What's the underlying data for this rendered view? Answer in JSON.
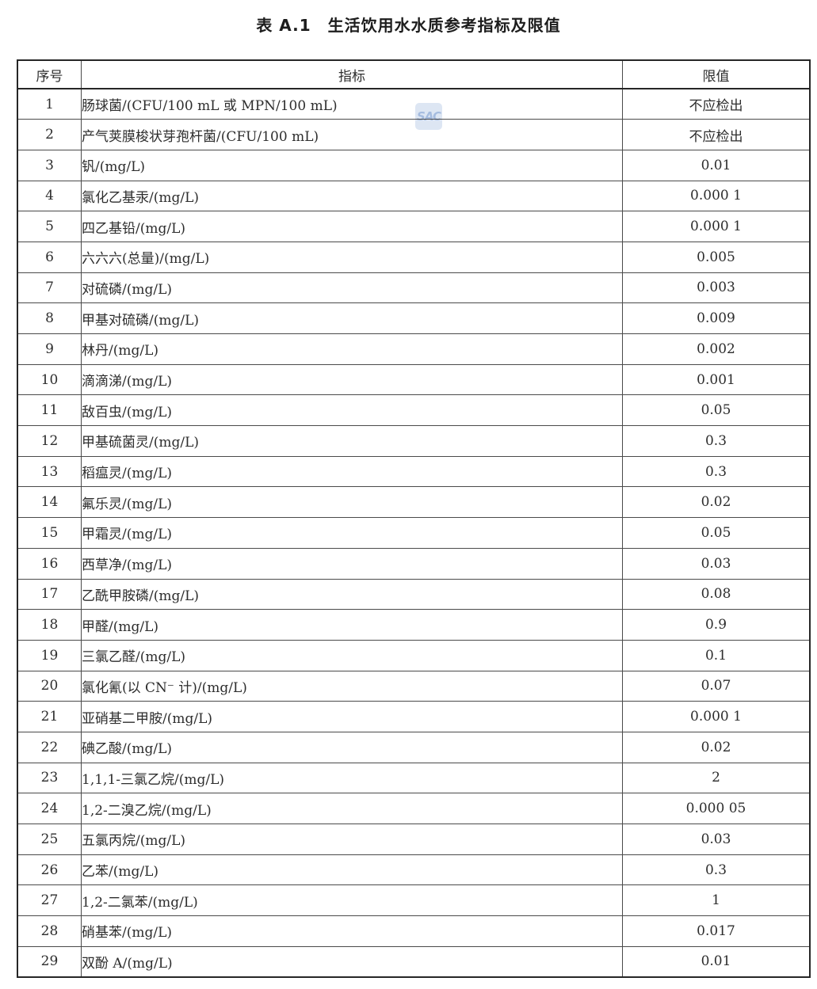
{
  "title": "表 A.1　生活饮用水水质参考指标及限值",
  "watermark": {
    "text": "SAC",
    "bg_color": "#dde6f3",
    "text_color": "#a5bcdf"
  },
  "table": {
    "headers": {
      "no": "序号",
      "indicator": "指标",
      "limit": "限值"
    },
    "rows": [
      {
        "no": "1",
        "indicator": "肠球菌/(CFU/100 mL 或 MPN/100 mL)",
        "limit": "不应检出"
      },
      {
        "no": "2",
        "indicator": "产气荚膜梭状芽孢杆菌/(CFU/100 mL)",
        "limit": "不应检出"
      },
      {
        "no": "3",
        "indicator": "钒/(mg/L)",
        "limit": "0.01"
      },
      {
        "no": "4",
        "indicator": "氯化乙基汞/(mg/L)",
        "limit": "0.000 1"
      },
      {
        "no": "5",
        "indicator": "四乙基铅/(mg/L)",
        "limit": "0.000 1"
      },
      {
        "no": "6",
        "indicator": "六六六(总量)/(mg/L)",
        "limit": "0.005"
      },
      {
        "no": "7",
        "indicator": "对硫磷/(mg/L)",
        "limit": "0.003"
      },
      {
        "no": "8",
        "indicator": "甲基对硫磷/(mg/L)",
        "limit": "0.009"
      },
      {
        "no": "9",
        "indicator": "林丹/(mg/L)",
        "limit": "0.002"
      },
      {
        "no": "10",
        "indicator": "滴滴涕/(mg/L)",
        "limit": "0.001"
      },
      {
        "no": "11",
        "indicator": "敌百虫/(mg/L)",
        "limit": "0.05"
      },
      {
        "no": "12",
        "indicator": "甲基硫菌灵/(mg/L)",
        "limit": "0.3"
      },
      {
        "no": "13",
        "indicator": "稻瘟灵/(mg/L)",
        "limit": "0.3"
      },
      {
        "no": "14",
        "indicator": "氟乐灵/(mg/L)",
        "limit": "0.02"
      },
      {
        "no": "15",
        "indicator": "甲霜灵/(mg/L)",
        "limit": "0.05"
      },
      {
        "no": "16",
        "indicator": "西草净/(mg/L)",
        "limit": "0.03"
      },
      {
        "no": "17",
        "indicator": "乙酰甲胺磷/(mg/L)",
        "limit": "0.08"
      },
      {
        "no": "18",
        "indicator": "甲醛/(mg/L)",
        "limit": "0.9"
      },
      {
        "no": "19",
        "indicator": "三氯乙醛/(mg/L)",
        "limit": "0.1"
      },
      {
        "no": "20",
        "indicator": "氯化氰(以 CN⁻ 计)/(mg/L)",
        "limit": "0.07"
      },
      {
        "no": "21",
        "indicator": "亚硝基二甲胺/(mg/L)",
        "limit": "0.000 1"
      },
      {
        "no": "22",
        "indicator": "碘乙酸/(mg/L)",
        "limit": "0.02"
      },
      {
        "no": "23",
        "indicator": "1,1,1-三氯乙烷/(mg/L)",
        "limit": "2"
      },
      {
        "no": "24",
        "indicator": "1,2-二溴乙烷/(mg/L)",
        "limit": "0.000 05"
      },
      {
        "no": "25",
        "indicator": "五氯丙烷/(mg/L)",
        "limit": "0.03"
      },
      {
        "no": "26",
        "indicator": "乙苯/(mg/L)",
        "limit": "0.3"
      },
      {
        "no": "27",
        "indicator": "1,2-二氯苯/(mg/L)",
        "limit": "1"
      },
      {
        "no": "28",
        "indicator": "硝基苯/(mg/L)",
        "limit": "0.017"
      },
      {
        "no": "29",
        "indicator": "双酚 A/(mg/L)",
        "limit": "0.01"
      }
    ]
  }
}
